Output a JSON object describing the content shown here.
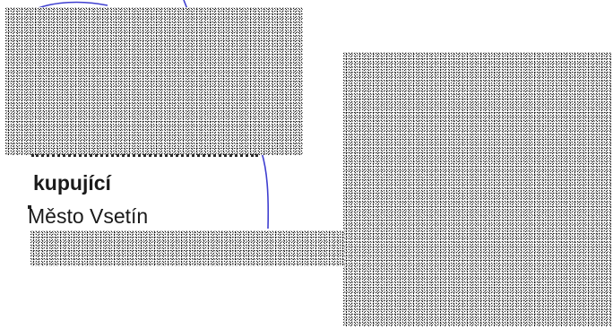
{
  "document": {
    "buyer_label": "kupující",
    "buyer_name": "Město Vsetín"
  },
  "colors": {
    "text": "#1a1a1a",
    "signature_stroke": "#3f3fd0"
  }
}
